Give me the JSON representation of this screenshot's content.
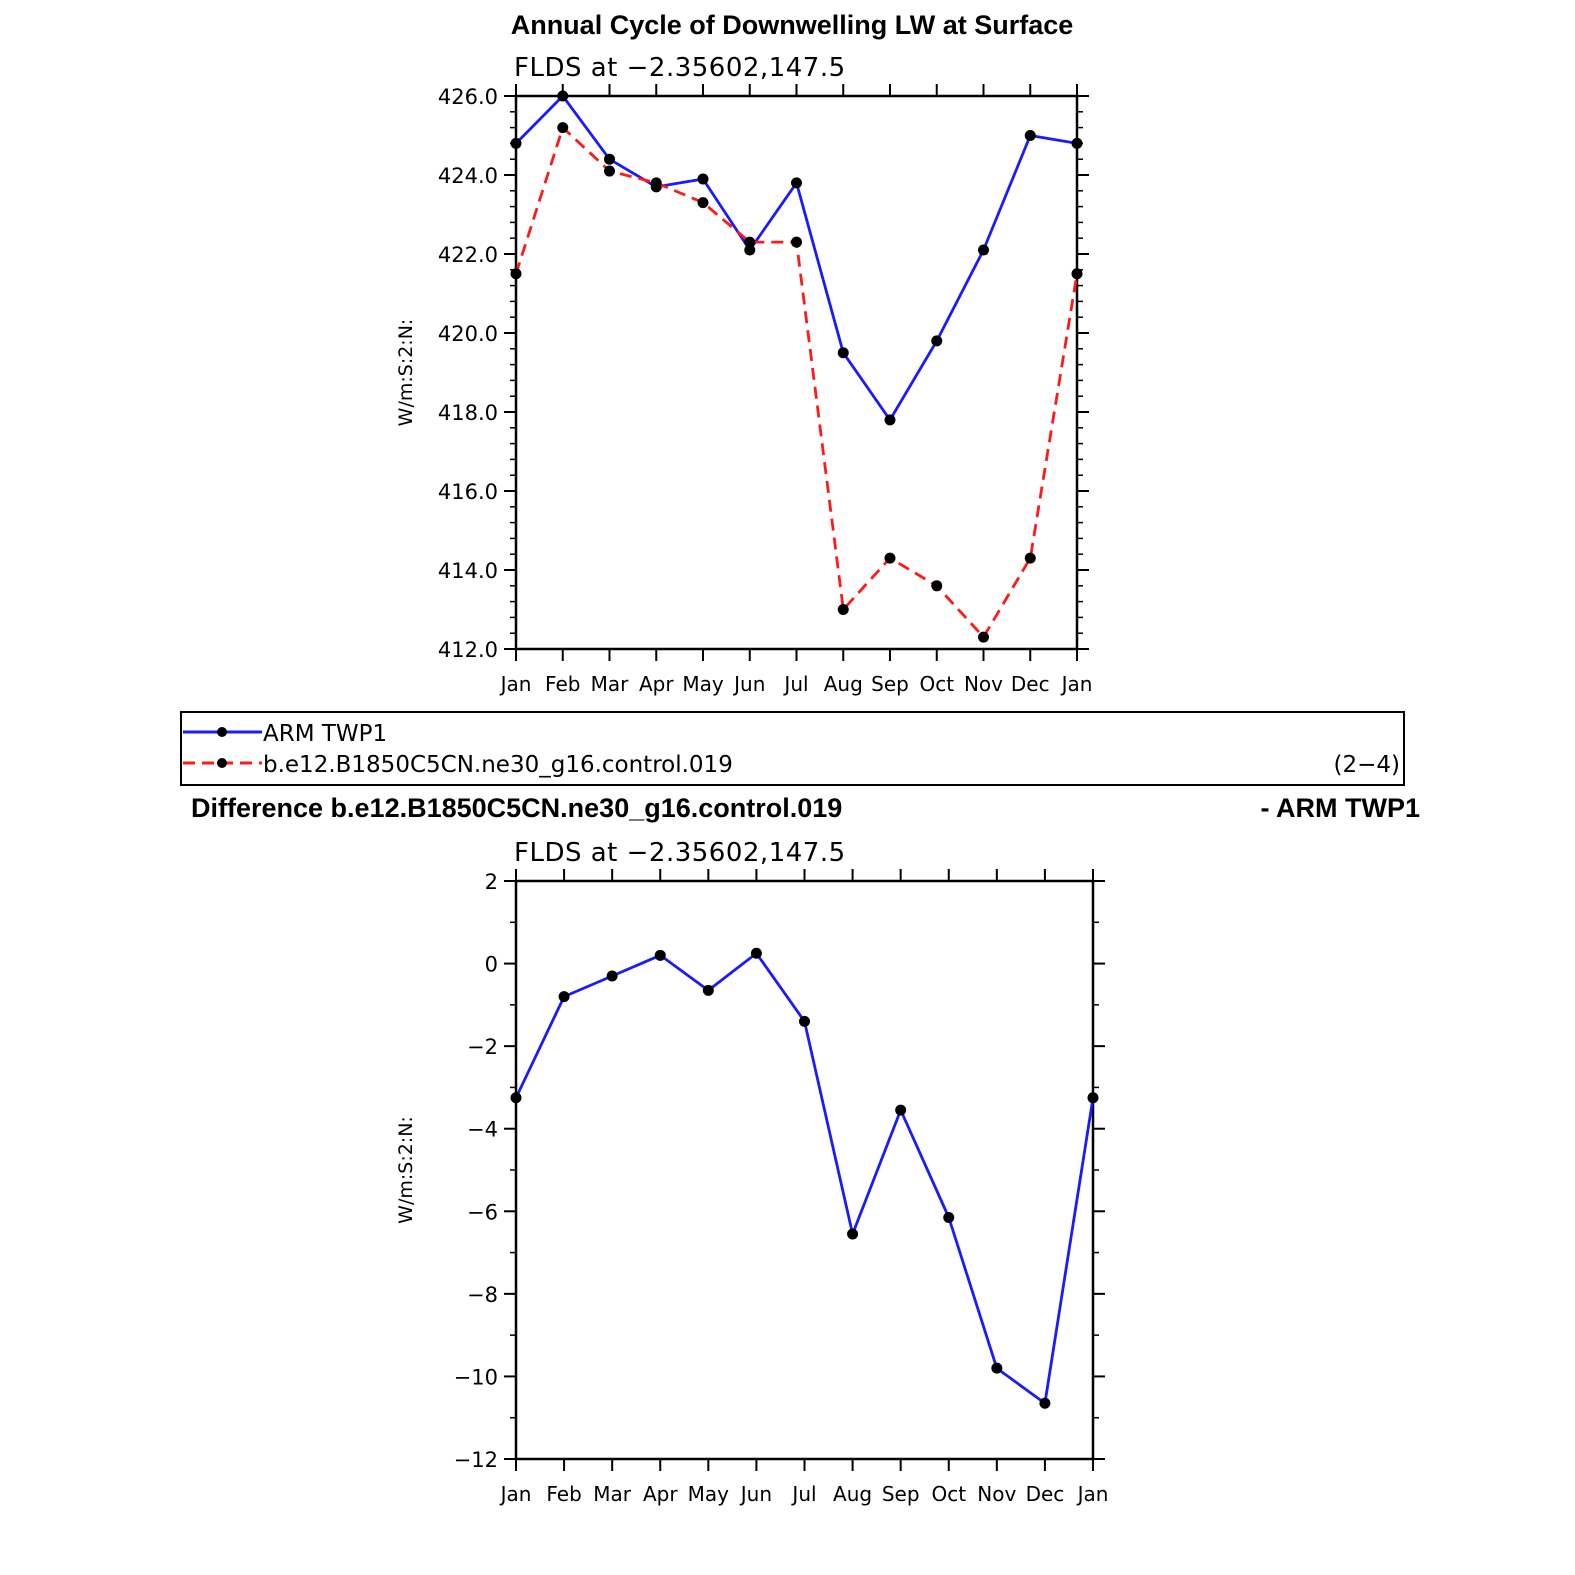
{
  "colors": {
    "obs": "#1a1aff",
    "model": "#ff1a1a",
    "marker": "#000000"
  },
  "chart_data": [
    {
      "type": "line",
      "title": "Annual Cycle of Downwelling LW at Surface",
      "subtitle": "FLDS at −2.35602,147.5",
      "ylabel": "W/m:S:2:N:",
      "categories": [
        "Jan",
        "Feb",
        "Mar",
        "Apr",
        "May",
        "Jun",
        "Jul",
        "Aug",
        "Sep",
        "Oct",
        "Nov",
        "Dec",
        "Jan"
      ],
      "ylim": [
        412.0,
        426.0
      ],
      "yticks": [
        "412.0",
        "414.0",
        "416.0",
        "418.0",
        "420.0",
        "422.0",
        "424.0",
        "426.0"
      ],
      "series": [
        {
          "name": "ARM TWP1",
          "style": "solid",
          "values": [
            424.8,
            426.0,
            424.4,
            423.7,
            423.9,
            422.1,
            423.8,
            419.5,
            417.8,
            419.8,
            422.1,
            425.0,
            424.8
          ]
        },
        {
          "name": "b.e12.B1850C5CN.ne30_g16.control.019",
          "style": "dashed",
          "values": [
            421.5,
            425.2,
            424.1,
            423.8,
            423.3,
            422.3,
            422.3,
            413.0,
            414.3,
            413.6,
            412.3,
            414.3,
            421.5
          ]
        }
      ]
    },
    {
      "type": "line",
      "title_left": "Difference b.e12.B1850C5CN.ne30_g16.control.019",
      "title_right": "- ARM TWP1",
      "subtitle": "FLDS at −2.35602,147.5",
      "ylabel": "W/m:S:2:N:",
      "categories": [
        "Jan",
        "Feb",
        "Mar",
        "Apr",
        "May",
        "Jun",
        "Jul",
        "Aug",
        "Sep",
        "Oct",
        "Nov",
        "Dec",
        "Jan"
      ],
      "ylim": [
        -12,
        2
      ],
      "yticks": [
        "−12",
        "−10",
        "−8",
        "−6",
        "−4",
        "−2",
        "0",
        "2"
      ],
      "series": [
        {
          "style": "solid",
          "values": [
            -3.25,
            -0.8,
            -0.3,
            0.2,
            -0.65,
            0.25,
            -1.4,
            -6.55,
            -3.55,
            -6.15,
            -9.8,
            -10.65,
            -3.25
          ]
        }
      ]
    }
  ],
  "legend": {
    "items": [
      "ARM TWP1",
      "b.e12.B1850C5CN.ne30_g16.control.019"
    ],
    "tag": "(2−4)"
  }
}
